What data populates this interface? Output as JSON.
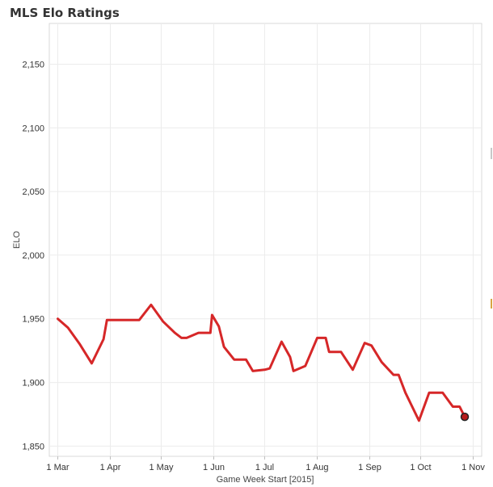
{
  "title": "MLS Elo Ratings",
  "chart_data": {
    "type": "line",
    "title": "MLS Elo Ratings",
    "xlabel": "Game Week Start [2015]",
    "ylabel": "ELO",
    "x_ticks": [
      "1 Mar",
      "1 Apr",
      "1 May",
      "1 Jun",
      "1 Jul",
      "1 Aug",
      "1 Sep",
      "1 Oct",
      "1 Nov"
    ],
    "x_tick_dates": [
      "2015-03-01",
      "2015-04-01",
      "2015-05-01",
      "2015-06-01",
      "2015-07-01",
      "2015-08-01",
      "2015-09-01",
      "2015-10-01",
      "2015-11-01"
    ],
    "y_ticks": [
      "1,850",
      "1,900",
      "1,950",
      "2,000",
      "2,050",
      "2,100",
      "2,150"
    ],
    "y_tick_values": [
      1850,
      1900,
      1950,
      2000,
      2050,
      2100,
      2150
    ],
    "ylim": [
      1842,
      2182
    ],
    "xlim": [
      "2015-02-24",
      "2015-11-06"
    ],
    "grid": true,
    "line_color": "#d62728",
    "marker_color": "#b71c1c",
    "series": [
      {
        "x": [
          "2015-03-01",
          "2015-03-07",
          "2015-03-14",
          "2015-03-21",
          "2015-03-28",
          "2015-03-30",
          "2015-04-04",
          "2015-04-11",
          "2015-04-18",
          "2015-04-25",
          "2015-05-02",
          "2015-05-09",
          "2015-05-13",
          "2015-05-16",
          "2015-05-23",
          "2015-05-30",
          "2015-05-31",
          "2015-06-04",
          "2015-06-07",
          "2015-06-13",
          "2015-06-20",
          "2015-06-24",
          "2015-07-01",
          "2015-07-04",
          "2015-07-11",
          "2015-07-16",
          "2015-07-18",
          "2015-07-25",
          "2015-08-01",
          "2015-08-06",
          "2015-08-08",
          "2015-08-15",
          "2015-08-22",
          "2015-08-29",
          "2015-09-02",
          "2015-09-08",
          "2015-09-15",
          "2015-09-18",
          "2015-09-22",
          "2015-09-26",
          "2015-09-30",
          "2015-10-06",
          "2015-10-10",
          "2015-10-14",
          "2015-10-20",
          "2015-10-24",
          "2015-10-27"
        ],
        "values": [
          1950,
          1943,
          1930,
          1915,
          1934,
          1949,
          1949,
          1949,
          1949,
          1961,
          1948,
          1939,
          1935,
          1935,
          1939,
          1939,
          1953,
          1944,
          1928,
          1918,
          1918,
          1909,
          1910,
          1911,
          1932,
          1920,
          1909,
          1913,
          1935,
          1935,
          1924,
          1924,
          1910,
          1931,
          1929,
          1916,
          1906,
          1906,
          1892,
          1881,
          1870,
          1892,
          1892,
          1892,
          1881,
          1881,
          1873
        ]
      }
    ]
  }
}
